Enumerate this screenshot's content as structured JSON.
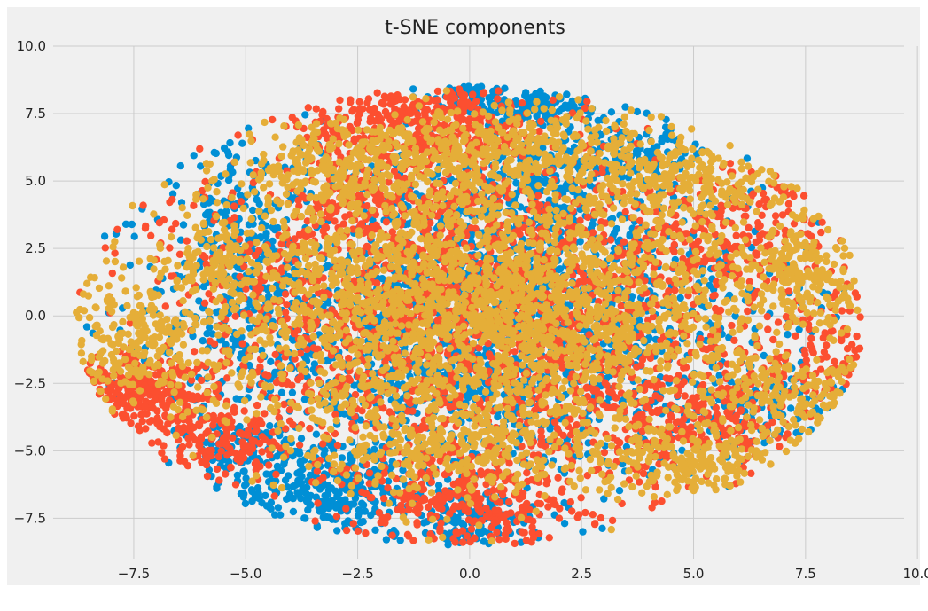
{
  "chart_data": {
    "type": "scatter",
    "title": "t-SNE components",
    "xlabel": "",
    "ylabel": "",
    "xlim": [
      -9.3,
      9.7
    ],
    "ylim": [
      -9.0,
      10.0
    ],
    "xticks": [
      -7.5,
      -5.0,
      -2.5,
      0.0,
      2.5,
      5.0,
      7.5,
      10.0
    ],
    "yticks": [
      10.0,
      7.5,
      5.0,
      2.5,
      0.0,
      -2.5,
      -5.0,
      -7.5
    ],
    "grid": true,
    "legend": "none",
    "series": [
      {
        "color": "#008fd5",
        "clusters": [
          {
            "cx": 0.0,
            "cy": 0.0,
            "sx": 3.2,
            "sy": 3.0,
            "n": 2200
          },
          {
            "cx": -3.0,
            "cy": -6.5,
            "sx": 1.2,
            "sy": 0.9,
            "n": 280
          },
          {
            "cx": 0.0,
            "cy": -7.8,
            "sx": 0.7,
            "sy": 0.6,
            "n": 140
          },
          {
            "cx": 1.5,
            "cy": 7.8,
            "sx": 1.0,
            "sy": 0.4,
            "n": 120
          },
          {
            "cx": 1.5,
            "cy": 5.0,
            "sx": 0.8,
            "sy": 0.8,
            "n": 160
          },
          {
            "cx": -5.3,
            "cy": 3.0,
            "sx": 0.5,
            "sy": 1.6,
            "n": 140
          },
          {
            "cx": 3.5,
            "cy": 6.0,
            "sx": 1.0,
            "sy": 0.5,
            "n": 120
          },
          {
            "cx": 6.5,
            "cy": -3.5,
            "sx": 0.8,
            "sy": 0.9,
            "n": 120
          },
          {
            "cx": -5.0,
            "cy": -5.2,
            "sx": 0.7,
            "sy": 0.8,
            "n": 100
          },
          {
            "cx": 0.0,
            "cy": 8.3,
            "sx": 0.5,
            "sy": 0.3,
            "n": 60
          }
        ]
      },
      {
        "color": "#fc4f30",
        "clusters": [
          {
            "cx": 0.0,
            "cy": 0.0,
            "sx": 3.3,
            "sy": 3.0,
            "n": 2000
          },
          {
            "cx": -7.3,
            "cy": -2.8,
            "sx": 0.9,
            "sy": 0.6,
            "n": 320
          },
          {
            "cx": -1.0,
            "cy": 7.0,
            "sx": 1.4,
            "sy": 0.9,
            "n": 420
          },
          {
            "cx": 0.0,
            "cy": -6.8,
            "sx": 1.3,
            "sy": 0.9,
            "n": 320
          },
          {
            "cx": -5.6,
            "cy": -4.7,
            "sx": 0.8,
            "sy": 0.6,
            "n": 150
          },
          {
            "cx": 6.0,
            "cy": 3.0,
            "sx": 1.3,
            "sy": 1.2,
            "n": 200
          },
          {
            "cx": 8.0,
            "cy": -1.5,
            "sx": 0.6,
            "sy": 1.2,
            "n": 120
          },
          {
            "cx": -2.0,
            "cy": 4.0,
            "sx": 1.0,
            "sy": 1.0,
            "n": 150
          },
          {
            "cx": 5.0,
            "cy": -4.0,
            "sx": 1.2,
            "sy": 1.0,
            "n": 200
          }
        ]
      },
      {
        "color": "#e5ae38",
        "clusters": [
          {
            "cx": 0.5,
            "cy": 0.3,
            "sx": 3.4,
            "sy": 2.8,
            "n": 2800
          },
          {
            "cx": 1.0,
            "cy": 6.2,
            "sx": 2.2,
            "sy": 0.8,
            "n": 420
          },
          {
            "cx": -3.0,
            "cy": 5.5,
            "sx": 1.2,
            "sy": 0.8,
            "n": 220
          },
          {
            "cx": -7.5,
            "cy": -1.0,
            "sx": 0.8,
            "sy": 1.1,
            "n": 220
          },
          {
            "cx": 7.5,
            "cy": 1.5,
            "sx": 0.6,
            "sy": 1.0,
            "n": 160
          },
          {
            "cx": 5.0,
            "cy": 5.0,
            "sx": 1.3,
            "sy": 0.7,
            "n": 180
          },
          {
            "cx": 5.0,
            "cy": -5.3,
            "sx": 1.0,
            "sy": 0.6,
            "n": 200
          },
          {
            "cx": 7.5,
            "cy": -3.0,
            "sx": 1.0,
            "sy": 0.8,
            "n": 200
          },
          {
            "cx": 0.0,
            "cy": -5.0,
            "sx": 1.5,
            "sy": 0.8,
            "n": 220
          },
          {
            "cx": -5.8,
            "cy": 2.0,
            "sx": 0.5,
            "sy": 1.0,
            "n": 100
          }
        ]
      }
    ]
  }
}
